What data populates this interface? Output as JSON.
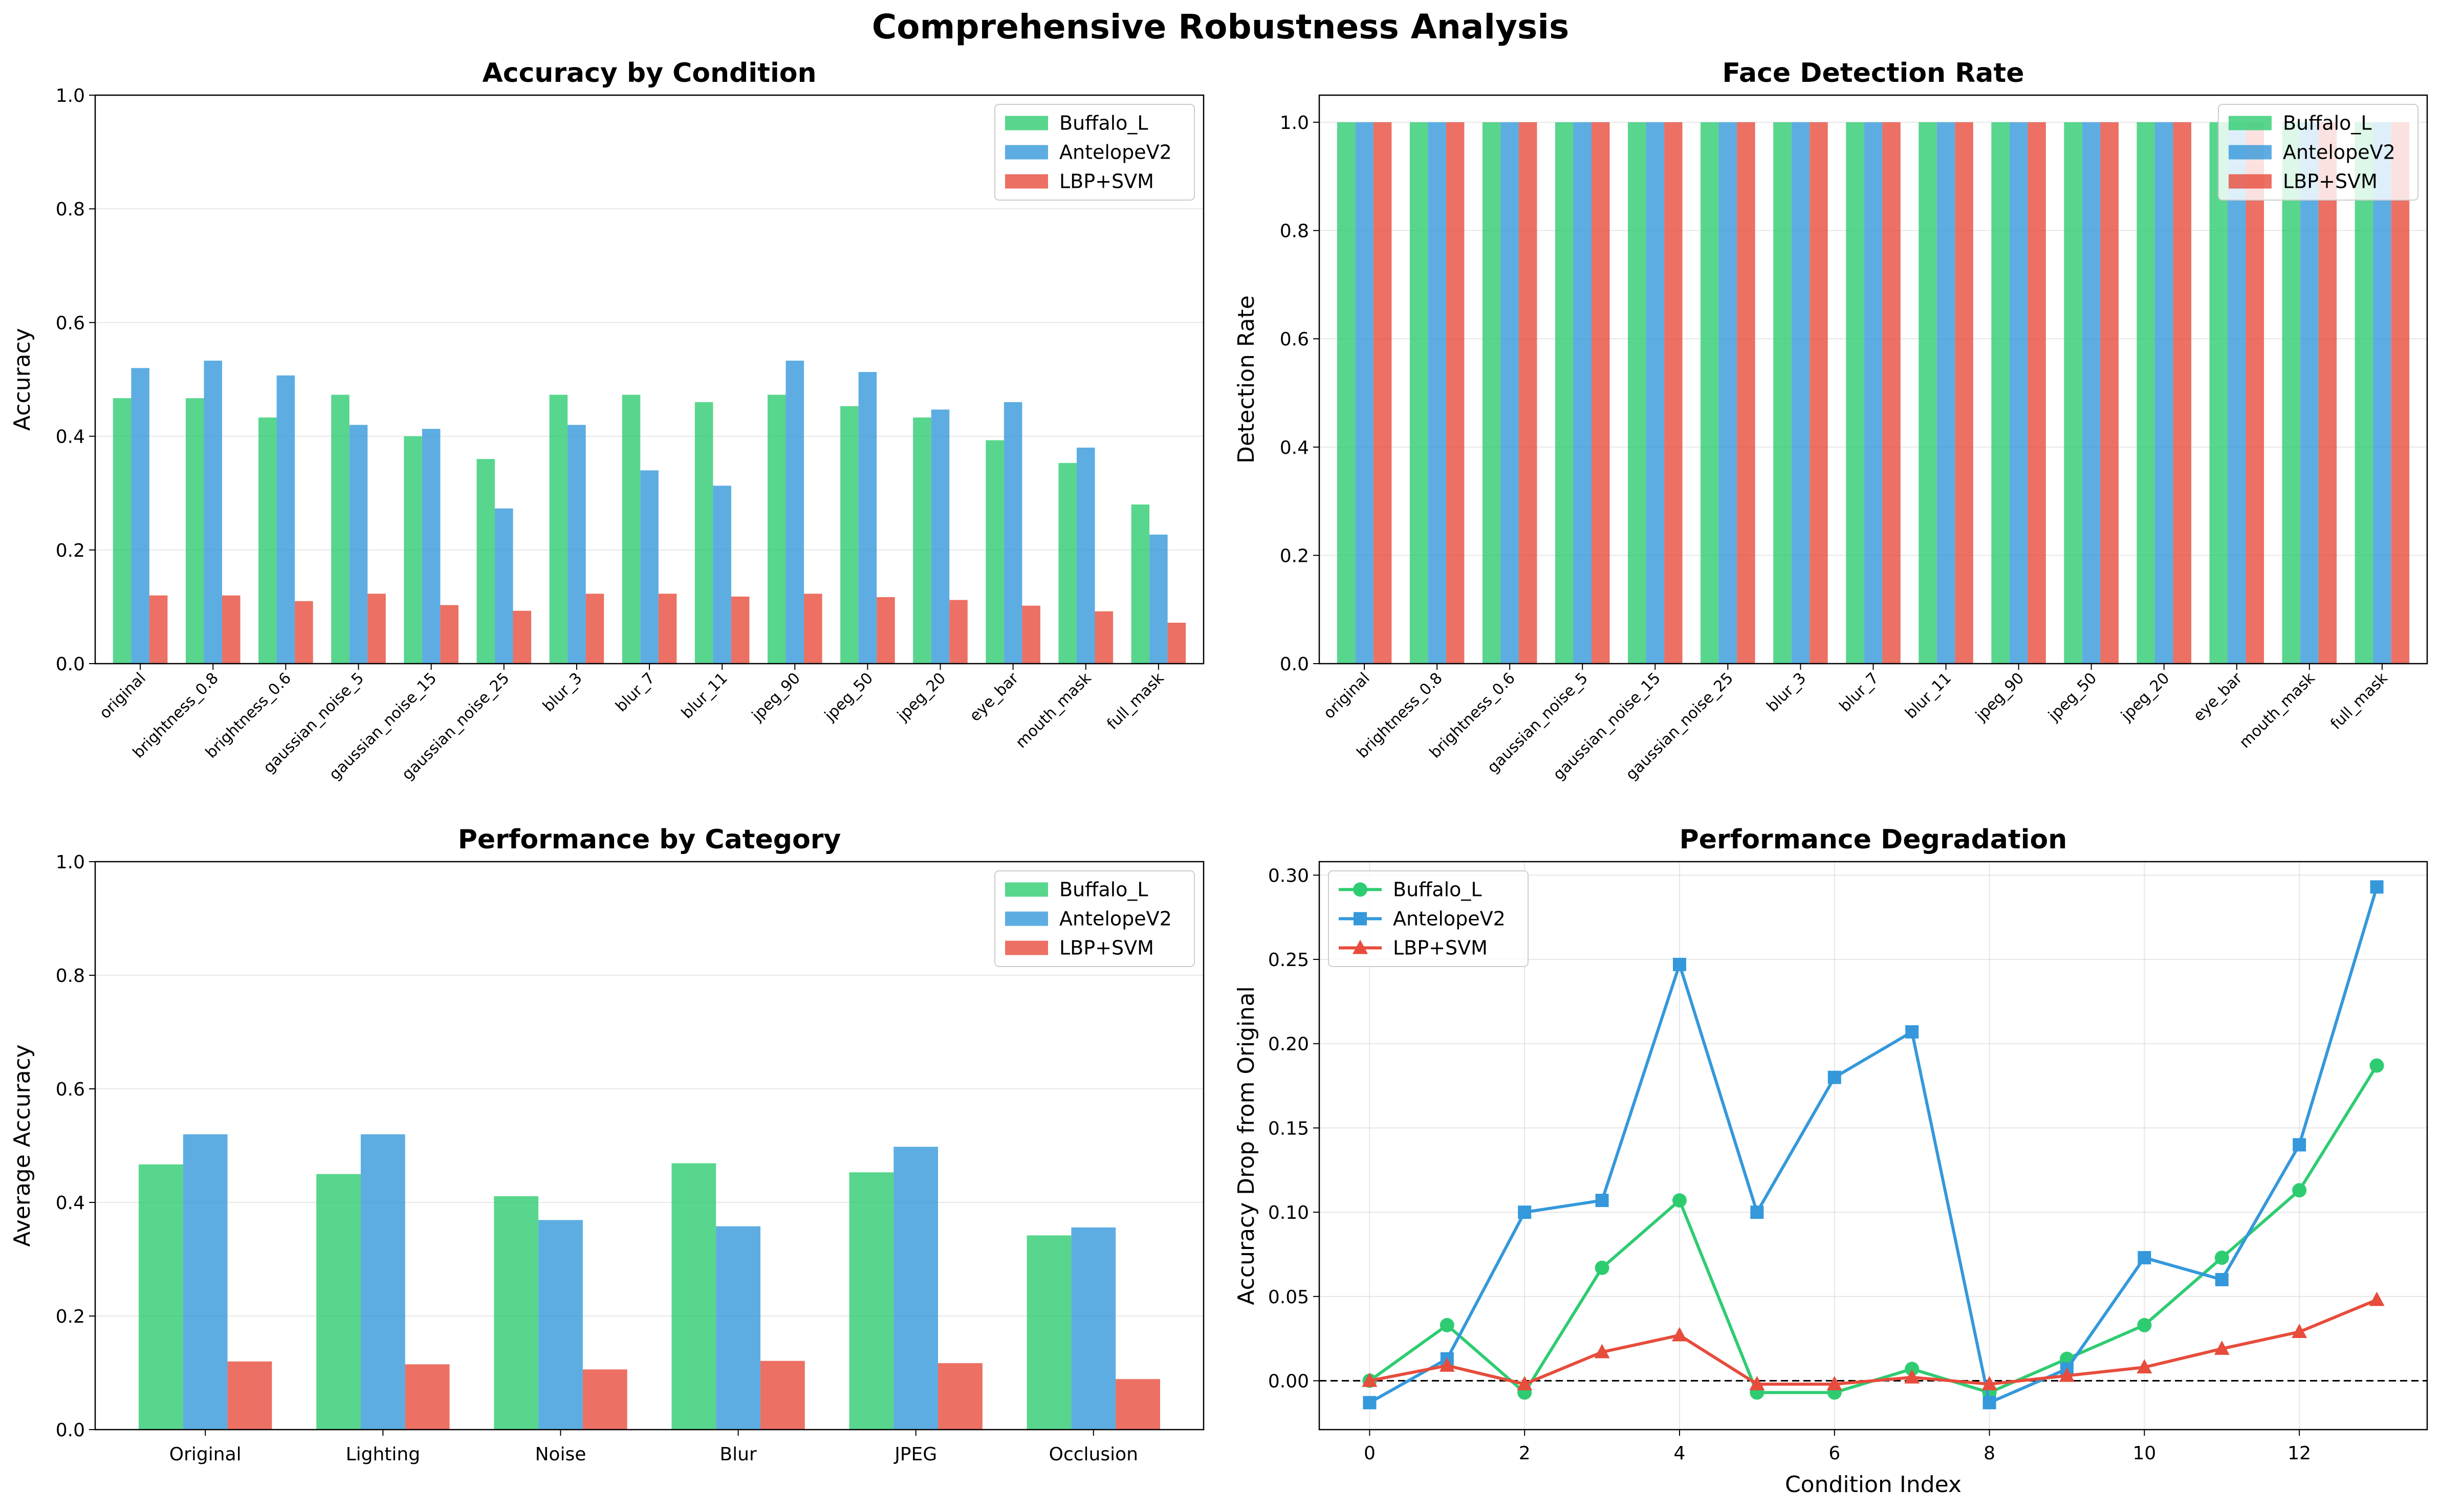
{
  "figure": {
    "title": "Comprehensive Robustness Analysis"
  },
  "colors": {
    "Buffalo_L": "#2ecc71",
    "AntelopeV2": "#3498db",
    "LBP+SVM": "#e74c3c"
  },
  "chart_data": [
    {
      "type": "bar",
      "title": "Accuracy by Condition",
      "xlabel": "",
      "ylabel": "Accuracy",
      "ylim": [
        0,
        1.0
      ],
      "yticks": [
        "0.0",
        "0.2",
        "0.4",
        "0.6",
        "0.8",
        "1.0"
      ],
      "legend_position": "top-right",
      "categories": [
        "original",
        "brightness_0.8",
        "brightness_0.6",
        "gaussian_noise_5",
        "gaussian_noise_15",
        "gaussian_noise_25",
        "blur_3",
        "blur_7",
        "blur_11",
        "jpeg_90",
        "jpeg_50",
        "jpeg_20",
        "eye_bar",
        "mouth_mask",
        "full_mask"
      ],
      "series": [
        {
          "name": "Buffalo_L",
          "values": [
            0.467,
            0.467,
            0.433,
            0.473,
            0.4,
            0.36,
            0.473,
            0.473,
            0.46,
            0.473,
            0.453,
            0.433,
            0.393,
            0.353,
            0.28
          ]
        },
        {
          "name": "AntelopeV2",
          "values": [
            0.52,
            0.533,
            0.507,
            0.42,
            0.413,
            0.273,
            0.42,
            0.34,
            0.313,
            0.533,
            0.513,
            0.447,
            0.46,
            0.38,
            0.227
          ]
        },
        {
          "name": "LBP+SVM",
          "values": [
            0.12,
            0.12,
            0.11,
            0.123,
            0.103,
            0.093,
            0.123,
            0.123,
            0.118,
            0.123,
            0.117,
            0.112,
            0.102,
            0.092,
            0.072
          ]
        }
      ]
    },
    {
      "type": "bar",
      "title": "Face Detection Rate",
      "xlabel": "",
      "ylabel": "Detection Rate",
      "ylim": [
        0,
        1.05
      ],
      "yticks": [
        "0.0",
        "0.2",
        "0.4",
        "0.6",
        "0.8",
        "1.0"
      ],
      "legend_position": "top-right",
      "categories": [
        "original",
        "brightness_0.8",
        "brightness_0.6",
        "gaussian_noise_5",
        "gaussian_noise_15",
        "gaussian_noise_25",
        "blur_3",
        "blur_7",
        "blur_11",
        "jpeg_90",
        "jpeg_50",
        "jpeg_20",
        "eye_bar",
        "mouth_mask",
        "full_mask"
      ],
      "series": [
        {
          "name": "Buffalo_L",
          "values": [
            1.0,
            1.0,
            1.0,
            1.0,
            1.0,
            1.0,
            1.0,
            1.0,
            1.0,
            1.0,
            1.0,
            1.0,
            1.0,
            1.0,
            1.0
          ]
        },
        {
          "name": "AntelopeV2",
          "values": [
            1.0,
            1.0,
            1.0,
            1.0,
            1.0,
            1.0,
            1.0,
            1.0,
            1.0,
            1.0,
            1.0,
            1.0,
            1.0,
            1.0,
            1.0
          ]
        },
        {
          "name": "LBP+SVM",
          "values": [
            1.0,
            1.0,
            1.0,
            1.0,
            1.0,
            1.0,
            1.0,
            1.0,
            1.0,
            1.0,
            1.0,
            1.0,
            1.0,
            1.0,
            1.0
          ]
        }
      ]
    },
    {
      "type": "bar",
      "title": "Performance by Category",
      "xlabel": "",
      "ylabel": "Average Accuracy",
      "ylim": [
        0,
        1.0
      ],
      "yticks": [
        "0.0",
        "0.2",
        "0.4",
        "0.6",
        "0.8",
        "1.0"
      ],
      "legend_position": "top-right",
      "categories": [
        "Original",
        "Lighting",
        "Noise",
        "Blur",
        "JPEG",
        "Occlusion"
      ],
      "series": [
        {
          "name": "Buffalo_L",
          "values": [
            0.467,
            0.45,
            0.411,
            0.469,
            0.453,
            0.342
          ]
        },
        {
          "name": "AntelopeV2",
          "values": [
            0.52,
            0.52,
            0.369,
            0.358,
            0.498,
            0.356
          ]
        },
        {
          "name": "LBP+SVM",
          "values": [
            0.12,
            0.115,
            0.106,
            0.121,
            0.117,
            0.089
          ]
        }
      ]
    },
    {
      "type": "line",
      "title": "Performance Degradation",
      "xlabel": "Condition Index",
      "ylabel": "Accuracy Drop from Original",
      "xlim": [
        -0.65,
        13.65
      ],
      "ylim": [
        -0.029,
        0.308
      ],
      "xticks": [
        "0",
        "2",
        "4",
        "6",
        "8",
        "10",
        "12"
      ],
      "yticks": [
        "0.00",
        "0.05",
        "0.10",
        "0.15",
        "0.20",
        "0.25",
        "0.30"
      ],
      "grid": true,
      "zero_reference_line": true,
      "legend_position": "top-left",
      "x": [
        0,
        1,
        2,
        3,
        4,
        5,
        6,
        7,
        8,
        9,
        10,
        11,
        12,
        13
      ],
      "series": [
        {
          "name": "Buffalo_L",
          "marker": "circle",
          "values": [
            0.0,
            0.033,
            -0.007,
            0.067,
            0.107,
            -0.007,
            -0.007,
            0.007,
            -0.007,
            0.013,
            0.033,
            0.073,
            0.113,
            0.187
          ]
        },
        {
          "name": "AntelopeV2",
          "marker": "square",
          "values": [
            -0.013,
            0.013,
            0.1,
            0.107,
            0.247,
            0.1,
            0.18,
            0.207,
            -0.013,
            0.007,
            0.073,
            0.06,
            0.14,
            0.293
          ]
        },
        {
          "name": "LBP+SVM",
          "marker": "triangle",
          "values": [
            0.0,
            0.009,
            -0.002,
            0.017,
            0.027,
            -0.002,
            -0.002,
            0.002,
            -0.002,
            0.003,
            0.008,
            0.019,
            0.029,
            0.048
          ]
        }
      ]
    }
  ]
}
